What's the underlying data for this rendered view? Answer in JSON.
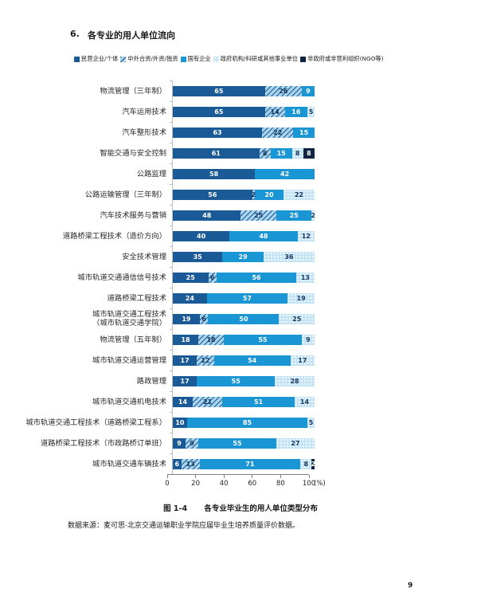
{
  "page": {
    "heading_number": "6.",
    "heading_title": "各专业的用人单位流向",
    "caption_label": "图 1-4",
    "caption_title": "各专业毕业生的用人单位类型分布",
    "source_text": "数据来源：麦可思-北京交通运输职业学院应届毕业生培养质量评价数据。",
    "page_number": "9"
  },
  "chart_data": {
    "type": "bar",
    "stacked": true,
    "orientation": "horizontal",
    "value_unit": "%",
    "xlim": [
      0,
      100
    ],
    "x_ticks": [
      "0",
      "20",
      "40",
      "60",
      "80",
      "100"
    ],
    "x_axis_suffix": "(%)",
    "colors": {
      "dark_blue": "#1A5A96",
      "bright_blue": "#1B96D5",
      "hatch_bg": "#A9D4EE",
      "dot_bg": "#C4E4F5",
      "dot": "#FFFFFF",
      "navy": "#10253F",
      "axis_line": "#7F7F7F"
    },
    "series": [
      {
        "name": "民营企业/个体",
        "style": "solid-dark"
      },
      {
        "name": "中外合资/外资/独资",
        "style": "hatched"
      },
      {
        "name": "国有企业",
        "style": "solid-bright"
      },
      {
        "name": "政府机构/科研或其他事业单位",
        "style": "dotted"
      },
      {
        "name": "非政府或非营利组织(NGO等)",
        "style": "solid-navy"
      }
    ],
    "rows": [
      {
        "label_lines": [
          "物流管理（三年制）"
        ],
        "values": [
          65,
          26,
          9,
          0,
          0
        ]
      },
      {
        "label_lines": [
          "汽车运用技术"
        ],
        "values": [
          65,
          14,
          16,
          5,
          0
        ]
      },
      {
        "label_lines": [
          "汽车整形技术"
        ],
        "values": [
          63,
          22,
          15,
          0,
          0
        ]
      },
      {
        "label_lines": [
          "智能交通与安全控制"
        ],
        "values": [
          61,
          8,
          15,
          8,
          8
        ]
      },
      {
        "label_lines": [
          "公路监理"
        ],
        "values": [
          58,
          0,
          42,
          0,
          0
        ]
      },
      {
        "label_lines": [
          "公路运输管理（三年制）"
        ],
        "values": [
          56,
          2,
          20,
          22,
          0
        ]
      },
      {
        "label_lines": [
          "汽车技术服务与营销"
        ],
        "values": [
          48,
          25,
          25,
          2,
          0
        ]
      },
      {
        "label_lines": [
          "道路桥梁工程技术（造价方向）"
        ],
        "values": [
          40,
          0,
          48,
          12,
          0
        ]
      },
      {
        "label_lines": [
          "安全技术管理"
        ],
        "values": [
          35,
          0,
          29,
          36,
          0
        ]
      },
      {
        "label_lines": [
          "城市轨道交通通信信号技术"
        ],
        "values": [
          25,
          6,
          56,
          13,
          0
        ]
      },
      {
        "label_lines": [
          "道路桥梁工程技术"
        ],
        "values": [
          24,
          0,
          57,
          19,
          0
        ]
      },
      {
        "label_lines": [
          "城市轨道交通工程技术",
          "（城市轨道交通学院）"
        ],
        "values": [
          19,
          6,
          50,
          25,
          0
        ]
      },
      {
        "label_lines": [
          "物流管理（五年制）"
        ],
        "values": [
          18,
          18,
          55,
          9,
          0
        ]
      },
      {
        "label_lines": [
          "城市轨道交通运营管理"
        ],
        "values": [
          17,
          12,
          54,
          17,
          0
        ]
      },
      {
        "label_lines": [
          "路政管理"
        ],
        "values": [
          17,
          0,
          55,
          28,
          0
        ]
      },
      {
        "label_lines": [
          "城市轨道交通机电技术"
        ],
        "values": [
          14,
          21,
          51,
          14,
          0
        ]
      },
      {
        "label_lines": [
          "城市轨道交通工程技术（道路桥梁工程系）"
        ],
        "values": [
          10,
          0,
          85,
          5,
          0
        ]
      },
      {
        "label_lines": [
          "道路桥梁工程技术（市政路桥订单班）"
        ],
        "values": [
          9,
          9,
          55,
          27,
          0
        ]
      },
      {
        "label_lines": [
          "城市轨道交通车辆技术"
        ],
        "values": [
          6,
          13,
          71,
          8,
          2
        ]
      }
    ]
  }
}
